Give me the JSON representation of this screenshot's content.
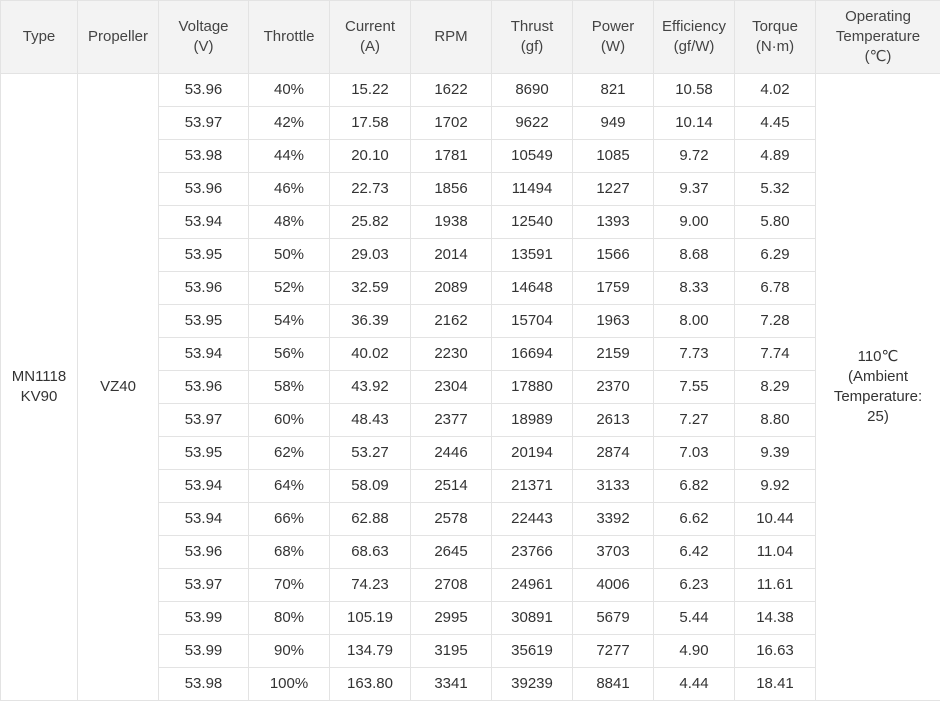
{
  "table": {
    "headers": [
      "Type",
      "Propeller",
      "Voltage\n(V)",
      "Throttle",
      "Current\n(A)",
      "RPM",
      "Thrust\n(gf)",
      "Power\n(W)",
      "Efficiency\n(gf/W)",
      "Torque\n(N·m)",
      "Operating\nTemperature\n(℃)"
    ],
    "type": "MN1118\nKV90",
    "propeller": "VZ40",
    "operating_temperature": "110℃\n(Ambient\nTemperature:\n25)",
    "rows": [
      [
        "53.96",
        "40%",
        "15.22",
        "1622",
        "8690",
        "821",
        "10.58",
        "4.02"
      ],
      [
        "53.97",
        "42%",
        "17.58",
        "1702",
        "9622",
        "949",
        "10.14",
        "4.45"
      ],
      [
        "53.98",
        "44%",
        "20.10",
        "1781",
        "10549",
        "1085",
        "9.72",
        "4.89"
      ],
      [
        "53.96",
        "46%",
        "22.73",
        "1856",
        "11494",
        "1227",
        "9.37",
        "5.32"
      ],
      [
        "53.94",
        "48%",
        "25.82",
        "1938",
        "12540",
        "1393",
        "9.00",
        "5.80"
      ],
      [
        "53.95",
        "50%",
        "29.03",
        "2014",
        "13591",
        "1566",
        "8.68",
        "6.29"
      ],
      [
        "53.96",
        "52%",
        "32.59",
        "2089",
        "14648",
        "1759",
        "8.33",
        "6.78"
      ],
      [
        "53.95",
        "54%",
        "36.39",
        "2162",
        "15704",
        "1963",
        "8.00",
        "7.28"
      ],
      [
        "53.94",
        "56%",
        "40.02",
        "2230",
        "16694",
        "2159",
        "7.73",
        "7.74"
      ],
      [
        "53.96",
        "58%",
        "43.92",
        "2304",
        "17880",
        "2370",
        "7.55",
        "8.29"
      ],
      [
        "53.97",
        "60%",
        "48.43",
        "2377",
        "18989",
        "2613",
        "7.27",
        "8.80"
      ],
      [
        "53.95",
        "62%",
        "53.27",
        "2446",
        "20194",
        "2874",
        "7.03",
        "9.39"
      ],
      [
        "53.94",
        "64%",
        "58.09",
        "2514",
        "21371",
        "3133",
        "6.82",
        "9.92"
      ],
      [
        "53.94",
        "66%",
        "62.88",
        "2578",
        "22443",
        "3392",
        "6.62",
        "10.44"
      ],
      [
        "53.96",
        "68%",
        "68.63",
        "2645",
        "23766",
        "3703",
        "6.42",
        "11.04"
      ],
      [
        "53.97",
        "70%",
        "74.23",
        "2708",
        "24961",
        "4006",
        "6.23",
        "11.61"
      ],
      [
        "53.99",
        "80%",
        "105.19",
        "2995",
        "30891",
        "5679",
        "5.44",
        "14.38"
      ],
      [
        "53.99",
        "90%",
        "134.79",
        "3195",
        "35619",
        "7277",
        "4.90",
        "16.63"
      ],
      [
        "53.98",
        "100%",
        "163.80",
        "3341",
        "39239",
        "8841",
        "4.44",
        "18.41"
      ]
    ]
  }
}
